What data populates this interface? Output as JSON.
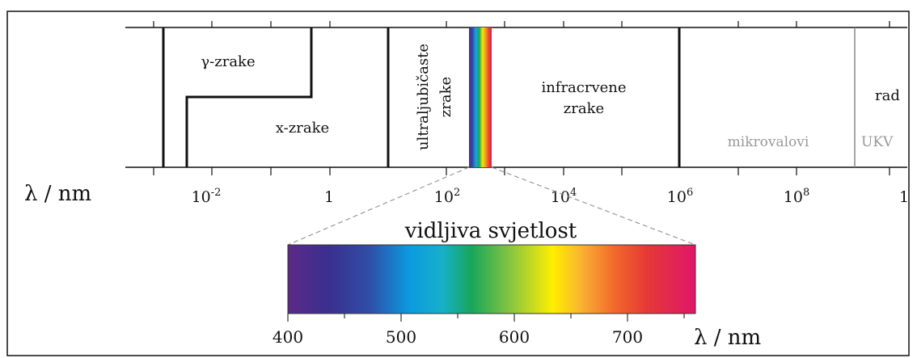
{
  "spectrum": {
    "axis_unit_label": "λ / nm",
    "regions": {
      "gamma": "γ-zrake",
      "xray": "x-zrake",
      "uv": [
        "ultraljubičaste",
        "zrake"
      ],
      "infrared": [
        "infracrvene",
        "zrake"
      ],
      "microwave": "mikrovalovi",
      "ukv": "UKV",
      "radio": "rad"
    },
    "tick_labels": [
      {
        "base": "10",
        "exp": "-2"
      },
      {
        "base": "1",
        "exp": ""
      },
      {
        "base": "10",
        "exp": "2"
      },
      {
        "base": "10",
        "exp": "4"
      },
      {
        "base": "10",
        "exp": "6"
      },
      {
        "base": "10",
        "exp": "8"
      },
      {
        "base": "1",
        "exp": ""
      }
    ]
  },
  "visible": {
    "title": "vidljiva svjetlost",
    "axis_unit_label": "λ / nm",
    "tick_labels": [
      "400",
      "500",
      "600",
      "700"
    ],
    "colors": [
      "#5b2a86",
      "#2f3f9e",
      "#0a9be0",
      "#17a65a",
      "#8cc63f",
      "#ffef00",
      "#f7941d",
      "#e53935",
      "#e0156b"
    ]
  }
}
